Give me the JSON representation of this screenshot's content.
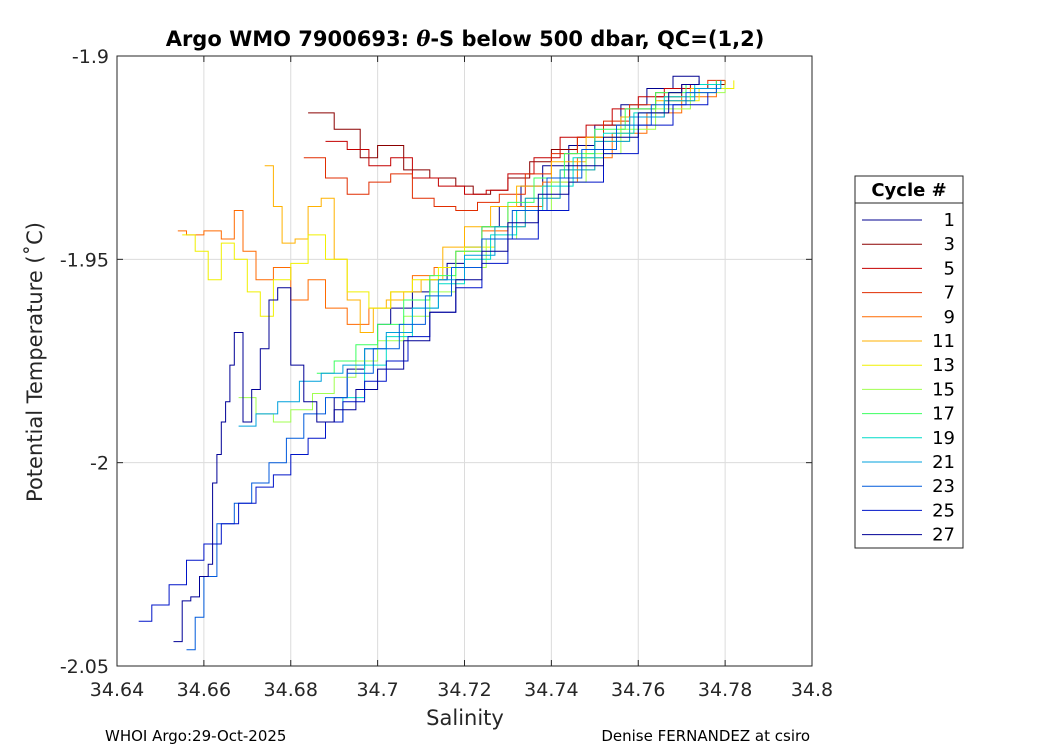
{
  "chart_data": {
    "type": "line",
    "title_prefix": "Argo WMO 7900693: ",
    "title_theta": "θ",
    "title_suffix": "-S below 500 dbar,  QC=(1,2)",
    "xlabel": "Salinity",
    "ylabel": "Potential Temperature (˚C)",
    "xlim": [
      34.64,
      34.8
    ],
    "ylim": [
      -2.05,
      -1.9
    ],
    "xticks": [
      34.64,
      34.66,
      34.68,
      34.7,
      34.72,
      34.74,
      34.76,
      34.78,
      34.8
    ],
    "xtick_labels": [
      "34.64",
      "34.66",
      "34.68",
      "34.7",
      "34.72",
      "34.74",
      "34.76",
      "34.78",
      "34.8"
    ],
    "yticks": [
      -1.9,
      -1.95,
      -2.0,
      -2.05
    ],
    "ytick_labels": [
      "-1.9",
      "-1.95",
      "-2",
      "-2.05"
    ],
    "grid": true,
    "legend_title": "Cycle #",
    "legend_position": "right",
    "series": [
      {
        "name": "1",
        "color": "#00008f",
        "x": [
          34.687,
          34.69,
          34.693,
          34.697,
          34.7,
          34.703,
          34.708,
          34.712,
          34.716,
          34.72,
          34.724,
          34.728,
          34.733,
          34.738,
          34.744,
          34.75,
          34.756,
          34.762,
          34.768,
          34.774,
          34.78
        ],
        "y": [
          -1.99,
          -1.984,
          -1.977,
          -1.972,
          -1.966,
          -1.962,
          -1.958,
          -1.955,
          -1.951,
          -1.947,
          -1.942,
          -1.937,
          -1.932,
          -1.927,
          -1.922,
          -1.917,
          -1.912,
          -1.908,
          -1.905,
          -1.907,
          -1.906
        ]
      },
      {
        "name": "3",
        "color": "#8b0000",
        "x": [
          34.684,
          34.69,
          34.696,
          34.7,
          34.706,
          34.712,
          34.718,
          34.722,
          34.726,
          34.73,
          34.735,
          34.74,
          34.746,
          34.752,
          34.758,
          34.764,
          34.77,
          34.776,
          34.78
        ],
        "y": [
          -1.914,
          -1.918,
          -1.925,
          -1.922,
          -1.928,
          -1.93,
          -1.932,
          -1.934,
          -1.933,
          -1.93,
          -1.926,
          -1.923,
          -1.92,
          -1.917,
          -1.913,
          -1.91,
          -1.908,
          -1.907,
          -1.906
        ]
      },
      {
        "name": "5",
        "color": "#c40000",
        "x": [
          34.688,
          34.693,
          34.698,
          34.703,
          34.708,
          34.714,
          34.72,
          34.725,
          34.73,
          34.736,
          34.742,
          34.748,
          34.754,
          34.76,
          34.766,
          34.772,
          34.778
        ],
        "y": [
          -1.921,
          -1.923,
          -1.927,
          -1.925,
          -1.93,
          -1.932,
          -1.934,
          -1.933,
          -1.929,
          -1.925,
          -1.92,
          -1.917,
          -1.913,
          -1.91,
          -1.908,
          -1.907,
          -1.906
        ]
      },
      {
        "name": "7",
        "color": "#e12d00",
        "x": [
          34.683,
          34.688,
          34.693,
          34.698,
          34.703,
          34.708,
          34.713,
          34.718,
          34.723,
          34.728,
          34.734,
          34.74,
          34.746,
          34.752,
          34.758,
          34.764,
          34.77,
          34.776,
          34.78
        ],
        "y": [
          -1.925,
          -1.93,
          -1.934,
          -1.931,
          -1.929,
          -1.935,
          -1.937,
          -1.938,
          -1.936,
          -1.934,
          -1.929,
          -1.924,
          -1.92,
          -1.916,
          -1.912,
          -1.909,
          -1.907,
          -1.906,
          -1.906
        ]
      },
      {
        "name": "9",
        "color": "#ff6a00",
        "x": [
          34.654,
          34.656,
          34.66,
          34.664,
          34.667,
          34.669,
          34.672,
          34.676,
          34.68,
          34.684,
          34.688,
          34.693,
          34.698,
          34.703,
          34.708,
          34.713,
          34.718,
          34.724,
          34.73,
          34.738,
          34.746,
          34.754,
          34.762,
          34.77,
          34.778
        ],
        "y": [
          -1.943,
          -1.944,
          -1.943,
          -1.945,
          -1.938,
          -1.948,
          -1.955,
          -1.952,
          -1.96,
          -1.955,
          -1.962,
          -1.966,
          -1.962,
          -1.958,
          -1.954,
          -1.952,
          -1.948,
          -1.943,
          -1.937,
          -1.931,
          -1.925,
          -1.919,
          -1.914,
          -1.91,
          -1.907
        ]
      },
      {
        "name": "11",
        "color": "#ffb200",
        "x": [
          34.674,
          34.676,
          34.678,
          34.681,
          34.684,
          34.687,
          34.69,
          34.693,
          34.696,
          34.699,
          34.702,
          34.706,
          34.71,
          34.715,
          34.72,
          34.726,
          34.732,
          34.74,
          34.748,
          34.756,
          34.764,
          34.772,
          34.78
        ],
        "y": [
          -1.927,
          -1.937,
          -1.946,
          -1.945,
          -1.937,
          -1.935,
          -1.95,
          -1.96,
          -1.968,
          -1.962,
          -1.96,
          -1.958,
          -1.955,
          -1.947,
          -1.942,
          -1.937,
          -1.932,
          -1.926,
          -1.92,
          -1.915,
          -1.911,
          -1.908,
          -1.906
        ]
      },
      {
        "name": "13",
        "color": "#f0f000",
        "x": [
          34.655,
          34.658,
          34.661,
          34.664,
          34.667,
          34.67,
          34.673,
          34.676,
          34.68,
          34.684,
          34.688,
          34.693,
          34.698,
          34.703,
          34.708,
          34.714,
          34.72,
          34.727,
          34.734,
          34.742,
          34.75,
          34.758,
          34.766,
          34.774,
          34.782
        ],
        "y": [
          -1.944,
          -1.948,
          -1.955,
          -1.946,
          -1.95,
          -1.958,
          -1.964,
          -1.955,
          -1.951,
          -1.944,
          -1.95,
          -1.958,
          -1.962,
          -1.958,
          -1.955,
          -1.952,
          -1.947,
          -1.942,
          -1.935,
          -1.928,
          -1.921,
          -1.915,
          -1.911,
          -1.908,
          -1.906
        ]
      },
      {
        "name": "15",
        "color": "#a0ff50",
        "x": [
          34.668,
          34.672,
          34.676,
          34.68,
          34.685,
          34.69,
          34.695,
          34.7,
          34.706,
          34.712,
          34.718,
          34.725,
          34.732,
          34.74,
          34.748,
          34.756,
          34.764,
          34.772,
          34.78
        ],
        "y": [
          -1.984,
          -1.988,
          -1.99,
          -1.987,
          -1.983,
          -1.979,
          -1.975,
          -1.97,
          -1.964,
          -1.958,
          -1.952,
          -1.945,
          -1.938,
          -1.931,
          -1.924,
          -1.918,
          -1.913,
          -1.909,
          -1.907
        ]
      },
      {
        "name": "17",
        "color": "#3cff60",
        "x": [
          34.686,
          34.69,
          34.695,
          34.7,
          34.706,
          34.712,
          34.718,
          34.724,
          34.73,
          34.736,
          34.743,
          34.75,
          34.757,
          34.764,
          34.771,
          34.778
        ],
        "y": [
          -1.978,
          -1.975,
          -1.971,
          -1.966,
          -1.96,
          -1.954,
          -1.948,
          -1.942,
          -1.936,
          -1.93,
          -1.924,
          -1.918,
          -1.913,
          -1.909,
          -1.907,
          -1.906
        ]
      },
      {
        "name": "19",
        "color": "#00dcc8",
        "x": [
          34.687,
          34.692,
          34.697,
          34.702,
          34.708,
          34.714,
          34.72,
          34.726,
          34.732,
          34.738,
          34.745,
          34.752,
          34.759,
          34.766,
          34.773,
          34.779
        ],
        "y": [
          -1.99,
          -1.984,
          -1.976,
          -1.969,
          -1.962,
          -1.956,
          -1.95,
          -1.944,
          -1.938,
          -1.932,
          -1.925,
          -1.919,
          -1.914,
          -1.91,
          -1.907,
          -1.906
        ]
      },
      {
        "name": "21",
        "color": "#00a0dc",
        "x": [
          34.668,
          34.672,
          34.677,
          34.682,
          34.687,
          34.692,
          34.697,
          34.702,
          34.708,
          34.714,
          34.72,
          34.727,
          34.734,
          34.742,
          34.75,
          34.758,
          34.766,
          34.773,
          34.779
        ],
        "y": [
          -1.991,
          -1.988,
          -1.985,
          -1.98,
          -1.978,
          -1.976,
          -1.972,
          -1.968,
          -1.962,
          -1.955,
          -1.949,
          -1.942,
          -1.935,
          -1.928,
          -1.921,
          -1.915,
          -1.911,
          -1.908,
          -1.906
        ]
      },
      {
        "name": "23",
        "color": "#005adc",
        "x": [
          34.656,
          34.658,
          34.66,
          34.663,
          34.667,
          34.671,
          34.675,
          34.679,
          34.683,
          34.688,
          34.693,
          34.699,
          34.705,
          34.711,
          34.717,
          34.724,
          34.731,
          34.739,
          34.747,
          34.755,
          34.763,
          34.771,
          34.778
        ],
        "y": [
          -2.046,
          -2.038,
          -2.028,
          -2.015,
          -2.01,
          -2.005,
          -2.0,
          -1.994,
          -1.988,
          -1.984,
          -1.978,
          -1.972,
          -1.966,
          -1.959,
          -1.952,
          -1.945,
          -1.938,
          -1.93,
          -1.923,
          -1.917,
          -1.912,
          -1.909,
          -1.907
        ]
      },
      {
        "name": "25",
        "color": "#0014c8",
        "x": [
          34.645,
          34.648,
          34.652,
          34.656,
          34.66,
          34.664,
          34.668,
          34.672,
          34.676,
          34.68,
          34.684,
          34.688,
          34.692,
          34.697,
          34.702,
          34.707,
          34.712,
          34.718,
          34.724,
          34.73,
          34.737,
          34.744,
          34.752,
          34.76,
          34.768,
          34.776
        ],
        "y": [
          -2.039,
          -2.035,
          -2.03,
          -2.024,
          -2.02,
          -2.015,
          -2.01,
          -2.006,
          -2.003,
          -1.998,
          -1.994,
          -1.99,
          -1.985,
          -1.98,
          -1.975,
          -1.969,
          -1.963,
          -1.957,
          -1.951,
          -1.945,
          -1.938,
          -1.931,
          -1.924,
          -1.917,
          -1.912,
          -1.909
        ]
      },
      {
        "name": "27",
        "color": "#000096",
        "x": [
          34.653,
          34.655,
          34.657,
          34.659,
          34.661,
          34.662,
          34.663,
          34.664,
          34.665,
          34.666,
          34.667,
          34.669,
          34.671,
          34.673,
          34.675,
          34.677,
          34.68,
          34.683,
          34.686,
          34.69,
          34.695,
          34.7,
          34.706,
          34.712,
          34.718,
          34.724,
          34.73,
          34.737,
          34.744,
          34.752,
          34.76,
          34.767,
          34.77,
          34.774
        ],
        "y": [
          -2.044,
          -2.034,
          -2.033,
          -2.028,
          -2.025,
          -2.005,
          -1.998,
          -1.99,
          -1.985,
          -1.976,
          -1.968,
          -1.99,
          -1.982,
          -1.972,
          -1.96,
          -1.957,
          -1.976,
          -1.985,
          -1.99,
          -1.987,
          -1.982,
          -1.977,
          -1.97,
          -1.963,
          -1.955,
          -1.948,
          -1.941,
          -1.934,
          -1.927,
          -1.92,
          -1.914,
          -1.909,
          -1.907,
          -1.906
        ]
      }
    ]
  },
  "footer": {
    "left": "WHOI Argo:29-Oct-2025",
    "right": "Denise FERNANDEZ at csiro"
  }
}
